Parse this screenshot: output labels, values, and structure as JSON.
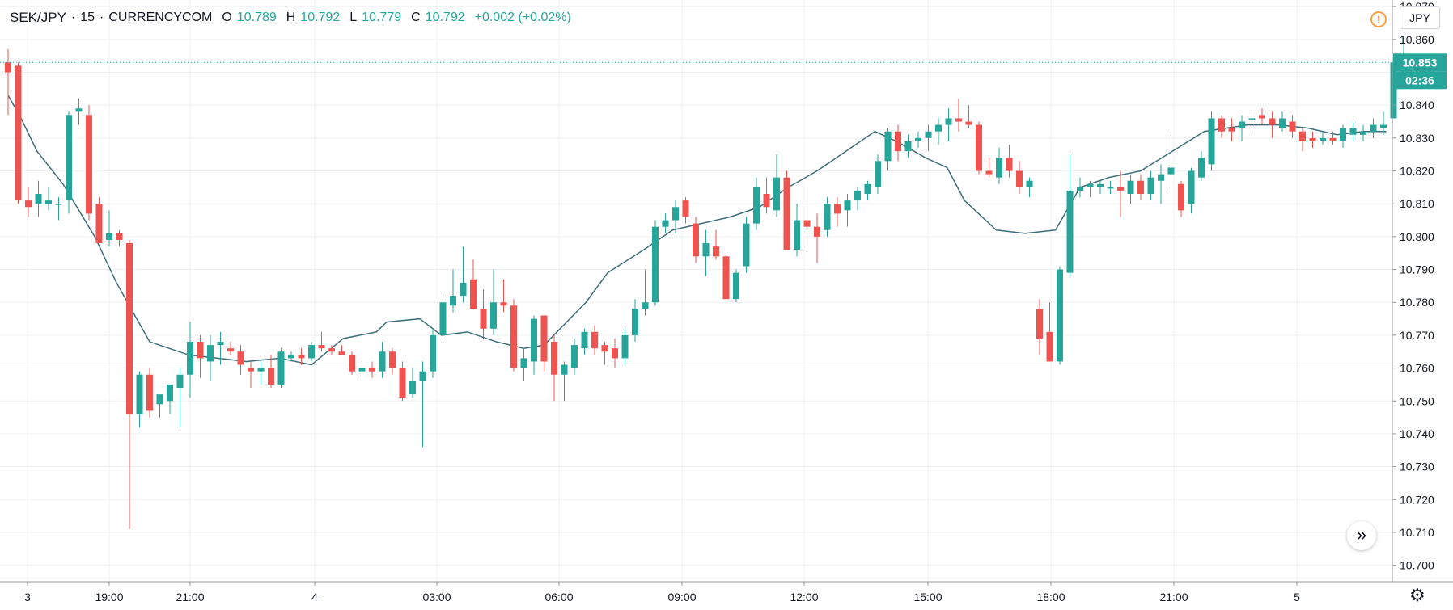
{
  "header": {
    "symbol": "SEK/JPY",
    "interval": "15",
    "exchange": "CURRENCYCOM",
    "open_label": "O",
    "open": "10.789",
    "high_label": "H",
    "high": "10.792",
    "low_label": "L",
    "low": "10.779",
    "close_label": "C",
    "close": "10.792",
    "change": "+0.002 (+0.02%)"
  },
  "currency_button": "JPY",
  "last_price": "10.853",
  "countdown": "02:36",
  "icons": {
    "alert": "alert-icon",
    "scroll": "scroll-right-icon",
    "settings": "gear-icon"
  },
  "colors": {
    "up": "#26a69a",
    "down": "#ef5350",
    "ma": "#3d6e7a",
    "grid": "#eef0f3",
    "price_tag": "#26a69a"
  },
  "chart_data": {
    "type": "candlestick",
    "ylim": [
      10.695,
      10.872
    ],
    "y_ticks": [
      "10.700",
      "10.710",
      "10.720",
      "10.730",
      "10.740",
      "10.750",
      "10.760",
      "10.770",
      "10.780",
      "10.790",
      "10.800",
      "10.810",
      "10.820",
      "10.830",
      "10.840",
      "10.850",
      "10.860",
      "10.870"
    ],
    "x_ticks": [
      "3",
      "19:00",
      "21:00",
      "4",
      "03:00",
      "06:00",
      "09:00",
      "12:00",
      "15:00",
      "18:00",
      "21:00",
      "5"
    ],
    "series": [
      {
        "candles": [
          [
            10.853,
            10.857,
            10.837,
            10.85
          ],
          [
            10.852,
            10.853,
            10.81,
            10.811
          ],
          [
            10.811,
            10.815,
            10.806,
            10.809
          ],
          [
            10.81,
            10.817,
            10.806,
            10.813
          ],
          [
            10.81,
            10.815,
            10.808,
            10.811
          ],
          [
            10.81,
            10.812,
            10.805,
            10.81
          ],
          [
            10.811,
            10.838,
            10.807,
            10.837
          ],
          [
            10.838,
            10.842,
            10.834,
            10.839
          ],
          [
            10.837,
            10.84,
            10.805,
            10.807
          ],
          [
            10.81,
            10.812,
            10.798,
            10.798
          ],
          [
            10.799,
            10.808,
            10.797,
            10.801
          ],
          [
            10.801,
            10.802,
            10.797,
            10.799
          ],
          [
            10.798,
            10.799,
            10.711,
            10.746
          ],
          [
            10.746,
            10.759,
            10.742,
            10.758
          ],
          [
            10.758,
            10.76,
            10.745,
            10.747
          ],
          [
            10.749,
            10.751,
            10.745,
            10.752
          ],
          [
            10.75,
            10.755,
            10.746,
            10.755
          ],
          [
            10.754,
            10.76,
            10.742,
            10.758
          ],
          [
            10.758,
            10.774,
            10.751,
            10.768
          ],
          [
            10.768,
            10.77,
            10.757,
            10.763
          ],
          [
            10.762,
            10.77,
            10.756,
            10.767
          ],
          [
            10.767,
            10.771,
            10.761,
            10.768
          ],
          [
            10.766,
            10.768,
            10.764,
            10.765
          ],
          [
            10.765,
            10.767,
            10.758,
            10.761
          ],
          [
            10.76,
            10.762,
            10.754,
            10.759
          ],
          [
            10.759,
            10.762,
            10.755,
            10.76
          ],
          [
            10.76,
            10.764,
            10.754,
            10.755
          ],
          [
            10.755,
            10.766,
            10.754,
            10.765
          ],
          [
            10.763,
            10.765,
            10.762,
            10.764
          ],
          [
            10.764,
            10.766,
            10.761,
            10.763
          ],
          [
            10.763,
            10.768,
            10.762,
            10.767
          ],
          [
            10.767,
            10.771,
            10.765,
            10.766
          ],
          [
            10.766,
            10.767,
            10.764,
            10.765
          ],
          [
            10.765,
            10.767,
            10.764,
            10.764
          ],
          [
            10.764,
            10.765,
            10.758,
            10.759
          ],
          [
            10.759,
            10.762,
            10.757,
            10.76
          ],
          [
            10.76,
            10.762,
            10.757,
            10.759
          ],
          [
            10.759,
            10.768,
            10.757,
            10.765
          ],
          [
            10.765,
            10.766,
            10.758,
            10.76
          ],
          [
            10.76,
            10.762,
            10.75,
            10.751
          ],
          [
            10.752,
            10.76,
            10.751,
            10.756
          ],
          [
            10.756,
            10.762,
            10.736,
            10.759
          ],
          [
            10.759,
            10.772,
            10.757,
            10.77
          ],
          [
            10.77,
            10.782,
            10.768,
            10.78
          ],
          [
            10.779,
            10.79,
            10.777,
            10.782
          ],
          [
            10.782,
            10.797,
            10.78,
            10.786
          ],
          [
            10.787,
            10.793,
            10.779,
            10.778
          ],
          [
            10.778,
            10.784,
            10.769,
            10.772
          ],
          [
            10.772,
            10.79,
            10.77,
            10.78
          ],
          [
            10.78,
            10.787,
            10.777,
            10.779
          ],
          [
            10.779,
            10.781,
            10.759,
            10.76
          ],
          [
            10.76,
            10.766,
            10.756,
            10.763
          ],
          [
            10.762,
            10.776,
            10.758,
            10.775
          ],
          [
            10.776,
            10.776,
            10.759,
            10.762
          ],
          [
            10.768,
            10.77,
            10.75,
            10.758
          ],
          [
            10.758,
            10.762,
            10.75,
            10.761
          ],
          [
            10.76,
            10.769,
            10.758,
            10.767
          ],
          [
            10.766,
            10.772,
            10.764,
            10.771
          ],
          [
            10.771,
            10.773,
            10.764,
            10.766
          ],
          [
            10.767,
            10.768,
            10.761,
            10.765
          ],
          [
            10.766,
            10.769,
            10.76,
            10.763
          ],
          [
            10.763,
            10.772,
            10.761,
            10.77
          ],
          [
            10.77,
            10.781,
            10.768,
            10.778
          ],
          [
            10.778,
            10.79,
            10.776,
            10.78
          ],
          [
            10.78,
            10.805,
            10.779,
            10.803
          ],
          [
            10.803,
            10.807,
            10.801,
            10.805
          ],
          [
            10.805,
            10.811,
            10.801,
            10.809
          ],
          [
            10.811,
            10.812,
            10.804,
            10.806
          ],
          [
            10.804,
            10.806,
            10.792,
            10.794
          ],
          [
            10.794,
            10.802,
            10.788,
            10.798
          ],
          [
            10.797,
            10.802,
            10.793,
            10.794
          ],
          [
            10.794,
            10.795,
            10.781,
            10.781
          ],
          [
            10.781,
            10.79,
            10.78,
            10.789
          ],
          [
            10.791,
            10.806,
            10.789,
            10.804
          ],
          [
            10.804,
            10.818,
            10.802,
            10.815
          ],
          [
            10.813,
            10.818,
            10.807,
            10.809
          ],
          [
            10.808,
            10.825,
            10.806,
            10.818
          ],
          [
            10.818,
            10.82,
            10.796,
            10.796
          ],
          [
            10.796,
            10.81,
            10.794,
            10.805
          ],
          [
            10.805,
            10.815,
            10.796,
            10.803
          ],
          [
            10.803,
            10.807,
            10.792,
            10.8
          ],
          [
            10.802,
            10.812,
            10.8,
            10.81
          ],
          [
            10.81,
            10.812,
            10.803,
            10.807
          ],
          [
            10.808,
            10.813,
            10.803,
            10.811
          ],
          [
            10.811,
            10.815,
            10.808,
            10.814
          ],
          [
            10.813,
            10.817,
            10.811,
            10.816
          ],
          [
            10.815,
            10.825,
            10.813,
            10.823
          ],
          [
            10.823,
            10.833,
            10.82,
            10.832
          ],
          [
            10.832,
            10.834,
            10.823,
            10.826
          ],
          [
            10.826,
            10.831,
            10.824,
            10.829
          ],
          [
            10.829,
            10.832,
            10.827,
            10.83
          ],
          [
            10.83,
            10.834,
            10.826,
            10.832
          ],
          [
            10.832,
            10.836,
            10.828,
            10.834
          ],
          [
            10.834,
            10.839,
            10.829,
            10.836
          ],
          [
            10.836,
            10.842,
            10.832,
            10.835
          ],
          [
            10.835,
            10.84,
            10.833,
            10.834
          ],
          [
            10.834,
            10.835,
            10.819,
            10.82
          ],
          [
            10.82,
            10.824,
            10.818,
            10.819
          ],
          [
            10.818,
            10.827,
            10.816,
            10.824
          ],
          [
            10.824,
            10.828,
            10.818,
            10.82
          ],
          [
            10.82,
            10.823,
            10.813,
            10.815
          ],
          [
            10.815,
            10.818,
            10.812,
            10.817
          ],
          [
            10.778,
            10.781,
            10.764,
            10.769
          ],
          [
            10.771,
            10.78,
            10.762,
            10.762
          ],
          [
            10.762,
            10.791,
            10.761,
            10.79
          ],
          [
            10.789,
            10.825,
            10.788,
            10.814
          ],
          [
            10.814,
            10.818,
            10.812,
            10.815
          ],
          [
            10.815,
            10.817,
            10.812,
            10.816
          ],
          [
            10.815,
            10.817,
            10.813,
            10.816
          ],
          [
            10.815,
            10.817,
            10.813,
            10.815
          ],
          [
            10.815,
            10.82,
            10.806,
            10.814
          ],
          [
            10.813,
            10.819,
            10.81,
            10.817
          ],
          [
            10.817,
            10.819,
            10.811,
            10.813
          ],
          [
            10.813,
            10.82,
            10.811,
            10.818
          ],
          [
            10.817,
            10.822,
            10.81,
            10.819
          ],
          [
            10.819,
            10.831,
            10.814,
            10.821
          ],
          [
            10.816,
            10.817,
            10.806,
            10.808
          ],
          [
            10.81,
            10.821,
            10.807,
            10.82
          ],
          [
            10.818,
            10.826,
            10.817,
            10.824
          ],
          [
            10.822,
            10.838,
            10.82,
            10.836
          ],
          [
            10.836,
            10.837,
            10.83,
            10.832
          ],
          [
            10.833,
            10.836,
            10.829,
            10.832
          ],
          [
            10.833,
            10.837,
            10.829,
            10.835
          ],
          [
            10.836,
            10.838,
            10.832,
            10.836
          ],
          [
            10.837,
            10.839,
            10.834,
            10.836
          ],
          [
            10.836,
            10.838,
            10.83,
            10.834
          ],
          [
            10.833,
            10.838,
            10.832,
            10.836
          ],
          [
            10.835,
            10.837,
            10.83,
            10.832
          ],
          [
            10.832,
            10.833,
            10.826,
            10.829
          ],
          [
            10.83,
            10.832,
            10.827,
            10.829
          ],
          [
            10.829,
            10.832,
            10.828,
            10.83
          ],
          [
            10.83,
            10.832,
            10.828,
            10.829
          ],
          [
            10.829,
            10.834,
            10.827,
            10.833
          ],
          [
            10.831,
            10.835,
            10.829,
            10.833
          ],
          [
            10.831,
            10.834,
            10.829,
            10.832
          ],
          [
            10.832,
            10.836,
            10.83,
            10.834
          ],
          [
            10.833,
            10.838,
            10.831,
            10.834
          ],
          [
            10.836,
            10.853,
            10.836,
            10.853
          ],
          [
            10.853,
            10.861,
            10.852,
            10.853
          ]
        ]
      }
    ],
    "moving_average": {
      "points": [
        [
          0,
          10.843
        ],
        [
          9,
          10.836
        ],
        [
          20,
          10.826
        ],
        [
          38,
          10.816
        ],
        [
          60,
          10.8
        ],
        [
          75,
          10.786
        ],
        [
          98,
          10.768
        ],
        [
          125,
          10.764
        ],
        [
          145,
          10.763
        ],
        [
          165,
          10.762
        ],
        [
          188,
          10.763
        ],
        [
          210,
          10.761
        ],
        [
          232,
          10.769
        ],
        [
          255,
          10.771
        ],
        [
          262,
          10.774
        ],
        [
          285,
          10.775
        ],
        [
          300,
          10.77
        ],
        [
          318,
          10.771
        ],
        [
          338,
          10.768
        ],
        [
          357,
          10.766
        ],
        [
          371,
          10.767
        ],
        [
          400,
          10.78
        ],
        [
          415,
          10.789
        ],
        [
          440,
          10.796
        ],
        [
          460,
          10.802
        ],
        [
          480,
          10.804
        ],
        [
          500,
          10.806
        ],
        [
          520,
          10.809
        ],
        [
          540,
          10.815
        ],
        [
          560,
          10.82
        ],
        [
          580,
          10.826
        ],
        [
          600,
          10.832
        ],
        [
          615,
          10.829
        ],
        [
          635,
          10.824
        ],
        [
          650,
          10.821
        ],
        [
          662,
          10.811
        ],
        [
          684,
          10.802
        ],
        [
          704,
          10.801
        ],
        [
          725,
          10.802
        ],
        [
          742,
          10.815
        ],
        [
          762,
          10.818
        ],
        [
          784,
          10.82
        ],
        [
          806,
          10.826
        ],
        [
          828,
          10.832
        ],
        [
          858,
          10.834
        ],
        [
          880,
          10.834
        ],
        [
          900,
          10.833
        ],
        [
          920,
          10.831
        ],
        [
          938,
          10.832
        ],
        [
          954,
          10.832
        ]
      ]
    },
    "last_price": 10.853
  }
}
